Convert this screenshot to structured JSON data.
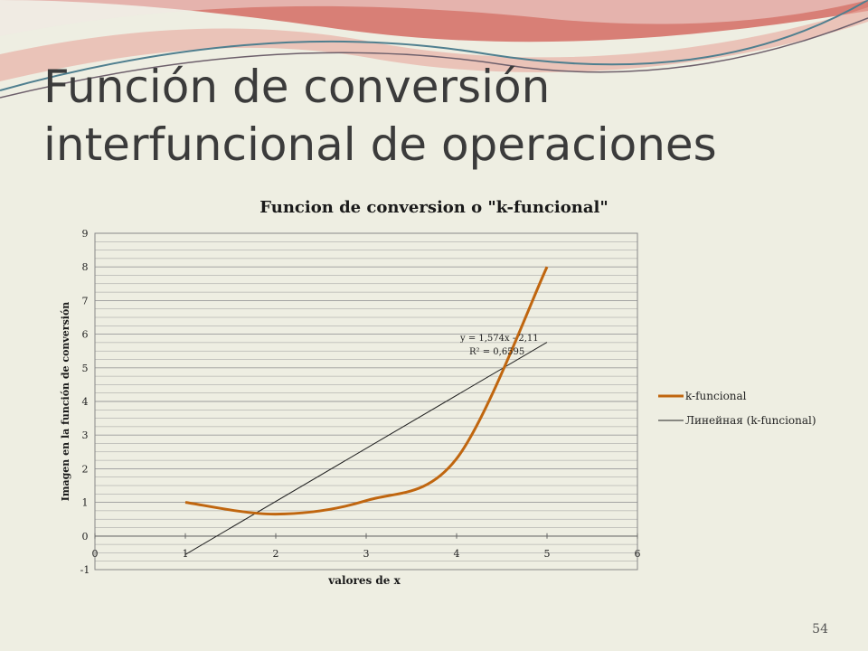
{
  "slide": {
    "title": "Función de conversión interfuncional de operaciones",
    "page_number": "54"
  },
  "colors": {
    "background": "#eeeee2",
    "series_main": "#c0660f",
    "trendline": "#222222",
    "gridline": "#9a9a9a",
    "wave_red": "#d65a5a",
    "wave_blue": "#4f7f8f"
  },
  "chart_data": {
    "type": "line",
    "title": "Funcion de conversion o \"k-funcional\"",
    "xlabel": "valores de x",
    "ylabel": "Imagen en la función de conversión",
    "xlim": [
      0,
      6
    ],
    "ylim": [
      -1,
      9
    ],
    "x_ticks": [
      "0",
      "1",
      "2",
      "3",
      "4",
      "5",
      "6"
    ],
    "y_ticks": [
      "-1",
      "0",
      "1",
      "2",
      "3",
      "4",
      "5",
      "6",
      "7",
      "8",
      "9"
    ],
    "grid": true,
    "legend_position": "right",
    "series": [
      {
        "name": "k-funcional",
        "x": [
          1,
          2,
          3,
          4,
          5
        ],
        "y": [
          1,
          0.65,
          1.05,
          2.3,
          8
        ]
      },
      {
        "name": "Линейная (k-funcional)",
        "kind": "linear-trendline",
        "x": [
          1,
          5
        ],
        "y": [
          -0.55,
          5.76
        ]
      }
    ],
    "annotation": {
      "equation": "y = 1,574x - 2,11",
      "r_squared": "R² = 0,6595"
    }
  }
}
